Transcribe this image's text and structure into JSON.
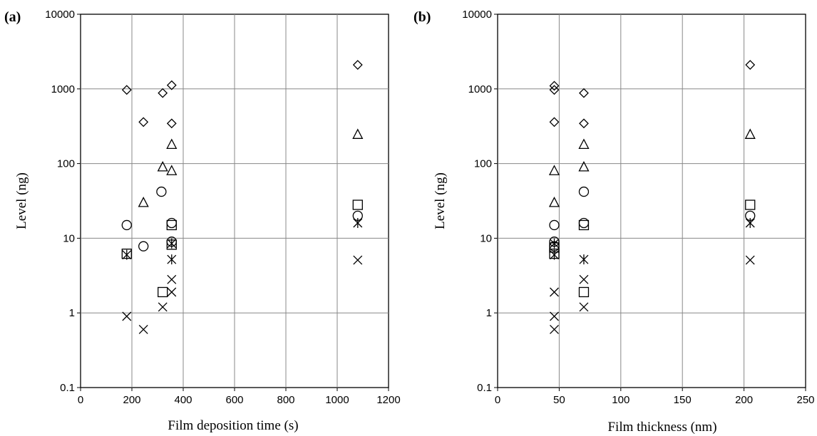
{
  "chart_data": [
    {
      "type": "scatter",
      "panel_label": "(a)",
      "xlabel": "Film deposition time (s)",
      "ylabel": "Level (ng)",
      "xlim": [
        0,
        1200
      ],
      "ylim": [
        0.1,
        10000
      ],
      "yscale": "log",
      "grid": true,
      "xticks": [
        "0",
        "200",
        "400",
        "600",
        "800",
        "1000",
        "1200"
      ],
      "yticks": [
        "0.1",
        "1",
        "10",
        "100",
        "1000",
        "10000"
      ],
      "series": [
        {
          "marker": "diamond",
          "points": [
            [
              180,
              970
            ],
            [
              245,
              360
            ],
            [
              320,
              880
            ],
            [
              355,
              1120
            ],
            [
              355,
              345
            ],
            [
              1080,
              2100
            ]
          ]
        },
        {
          "marker": "triangle",
          "points": [
            [
              245,
              30
            ],
            [
              320,
              90
            ],
            [
              355,
              180
            ],
            [
              355,
              80
            ],
            [
              1080,
              245
            ]
          ]
        },
        {
          "marker": "circle",
          "points": [
            [
              180,
              15
            ],
            [
              245,
              7.8
            ],
            [
              315,
              42
            ],
            [
              355,
              16
            ],
            [
              355,
              9
            ],
            [
              1080,
              20
            ]
          ]
        },
        {
          "marker": "square",
          "points": [
            [
              180,
              6.2
            ],
            [
              320,
              1.9
            ],
            [
              355,
              15
            ],
            [
              355,
              8.2
            ],
            [
              1080,
              28
            ]
          ]
        },
        {
          "marker": "star",
          "points": [
            [
              180,
              6
            ],
            [
              355,
              8.5
            ],
            [
              355,
              5.2
            ],
            [
              1080,
              16
            ]
          ]
        },
        {
          "marker": "x",
          "points": [
            [
              180,
              0.9
            ],
            [
              245,
              0.6
            ],
            [
              320,
              1.2
            ],
            [
              355,
              2.8
            ],
            [
              355,
              1.9
            ],
            [
              1080,
              5.1
            ]
          ]
        }
      ]
    },
    {
      "type": "scatter",
      "panel_label": "(b)",
      "xlabel": "Film thickness (nm)",
      "ylabel": "Level (ng)",
      "xlim": [
        0,
        250
      ],
      "ylim": [
        0.1,
        10000
      ],
      "yscale": "log",
      "grid": true,
      "xticks": [
        "0",
        "50",
        "100",
        "150",
        "200",
        "250"
      ],
      "yticks": [
        "0.1",
        "1",
        "10",
        "100",
        "1000",
        "10000"
      ],
      "series": [
        {
          "marker": "diamond",
          "points": [
            [
              46,
              1100
            ],
            [
              46,
              970
            ],
            [
              46,
              360
            ],
            [
              70,
              880
            ],
            [
              70,
              345
            ],
            [
              205,
              2100
            ]
          ]
        },
        {
          "marker": "triangle",
          "points": [
            [
              46,
              80
            ],
            [
              46,
              30
            ],
            [
              70,
              180
            ],
            [
              70,
              90
            ],
            [
              205,
              245
            ]
          ]
        },
        {
          "marker": "circle",
          "points": [
            [
              46,
              15
            ],
            [
              46,
              9
            ],
            [
              46,
              7.8
            ],
            [
              70,
              42
            ],
            [
              70,
              16
            ],
            [
              205,
              20
            ]
          ]
        },
        {
          "marker": "square",
          "points": [
            [
              46,
              7.5
            ],
            [
              46,
              6.2
            ],
            [
              70,
              15
            ],
            [
              70,
              1.9
            ],
            [
              205,
              28
            ]
          ]
        },
        {
          "marker": "star",
          "points": [
            [
              46,
              8.5
            ],
            [
              46,
              6
            ],
            [
              70,
              5.2
            ],
            [
              205,
              16
            ]
          ]
        },
        {
          "marker": "x",
          "points": [
            [
              46,
              1.9
            ],
            [
              46,
              0.9
            ],
            [
              46,
              0.6
            ],
            [
              70,
              2.8
            ],
            [
              70,
              1.2
            ],
            [
              205,
              5.1
            ]
          ]
        }
      ]
    }
  ]
}
